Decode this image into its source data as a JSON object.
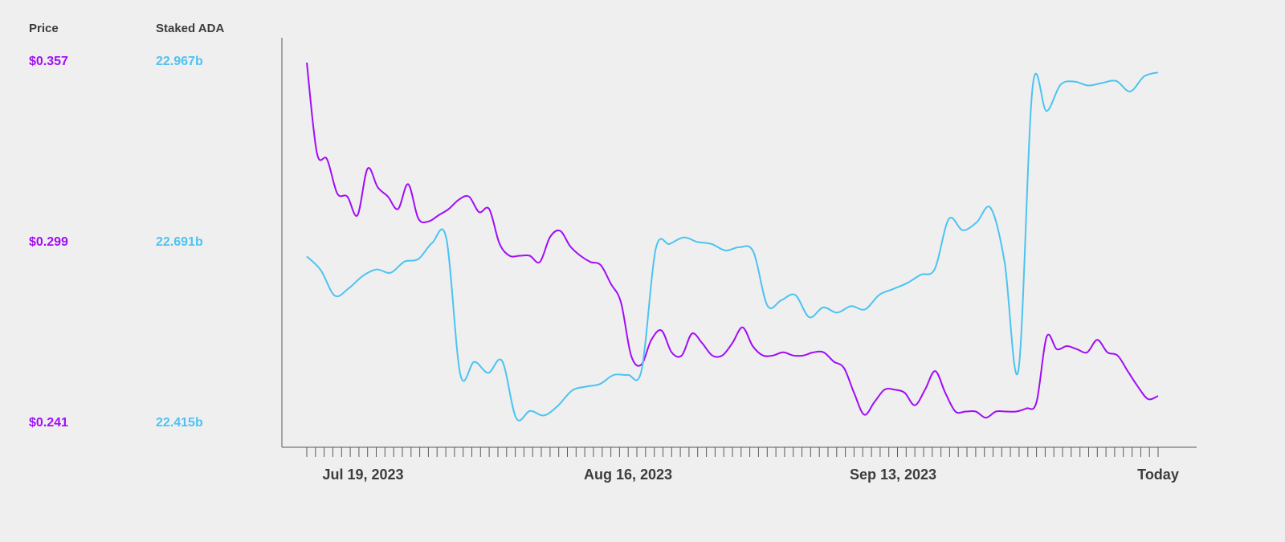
{
  "colors": {
    "price": "#a10df5",
    "staked": "#4cc3f2",
    "axis": "#5a5a5a",
    "text": "#3c3c3c",
    "background": "#efefef"
  },
  "labels": {
    "price_header": "Price",
    "staked_header": "Staked ADA"
  },
  "chart_data": {
    "type": "line",
    "x_tick_labels": [
      "Jul 19, 2023",
      "Aug 16, 2023",
      "Sep 13, 2023",
      "Today"
    ],
    "x_days": 98,
    "price_axis": {
      "ticks": [
        "$0.357",
        "$0.299",
        "$0.241"
      ],
      "range": [
        0.241,
        0.357
      ]
    },
    "staked_axis": {
      "ticks": [
        "22.967b",
        "22.691b",
        "22.415b"
      ],
      "range": [
        22.415,
        22.967
      ]
    },
    "series": [
      {
        "name": "Price",
        "axis": "price",
        "values": [
          0.357,
          0.328,
          0.326,
          0.315,
          0.314,
          0.308,
          0.323,
          0.317,
          0.314,
          0.31,
          0.318,
          0.307,
          0.306,
          0.308,
          0.31,
          0.313,
          0.314,
          0.309,
          0.31,
          0.299,
          0.295,
          0.295,
          0.295,
          0.293,
          0.301,
          0.303,
          0.298,
          0.295,
          0.293,
          0.292,
          0.286,
          0.28,
          0.263,
          0.26,
          0.268,
          0.271,
          0.264,
          0.263,
          0.27,
          0.267,
          0.263,
          0.263,
          0.267,
          0.272,
          0.266,
          0.263,
          0.263,
          0.264,
          0.263,
          0.263,
          0.264,
          0.264,
          0.261,
          0.259,
          0.251,
          0.244,
          0.248,
          0.252,
          0.252,
          0.251,
          0.247,
          0.252,
          0.258,
          0.251,
          0.245,
          0.245,
          0.245,
          0.243,
          0.245,
          0.245,
          0.245,
          0.246,
          0.248,
          0.269,
          0.265,
          0.266,
          0.265,
          0.264,
          0.268,
          0.264,
          0.263,
          0.258,
          0.253,
          0.249,
          0.25
        ]
      },
      {
        "name": "Staked ADA",
        "axis": "staked",
        "values": [
          22.671,
          22.65,
          22.611,
          22.622,
          22.641,
          22.651,
          22.646,
          22.663,
          22.667,
          22.692,
          22.698,
          22.491,
          22.51,
          22.493,
          22.511,
          22.424,
          22.435,
          22.428,
          22.443,
          22.466,
          22.472,
          22.476,
          22.49,
          22.49,
          22.498,
          22.682,
          22.69,
          22.7,
          22.693,
          22.69,
          22.68,
          22.685,
          22.678,
          22.596,
          22.604,
          22.612,
          22.578,
          22.593,
          22.585,
          22.595,
          22.59,
          22.612,
          22.621,
          22.63,
          22.643,
          22.652,
          22.728,
          22.711,
          22.723,
          22.745,
          22.662,
          22.498,
          22.928,
          22.893,
          22.933,
          22.938,
          22.932,
          22.936,
          22.939,
          22.923,
          22.946,
          22.952
        ]
      }
    ],
    "grid": false
  }
}
